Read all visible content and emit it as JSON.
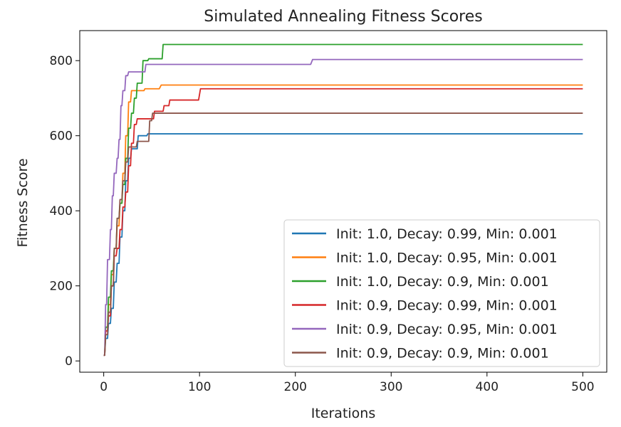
{
  "chart_data": {
    "type": "line",
    "title": "Simulated Annealing Fitness Scores",
    "xlabel": "Iterations",
    "ylabel": "Fitness Score",
    "xlim": [
      -25,
      525
    ],
    "ylim": [
      -30,
      880
    ],
    "xticks": [
      0,
      100,
      200,
      300,
      400,
      500
    ],
    "yticks": [
      0,
      200,
      400,
      600,
      800
    ],
    "legend_position": "lower-right",
    "series": [
      {
        "name": "Init: 1.0, Decay: 0.99, Min: 0.001",
        "color": "#1f77b4",
        "points": [
          [
            0,
            15
          ],
          [
            1,
            15
          ],
          [
            2,
            60
          ],
          [
            4,
            60
          ],
          [
            5,
            100
          ],
          [
            7,
            100
          ],
          [
            8,
            140
          ],
          [
            10,
            140
          ],
          [
            11,
            210
          ],
          [
            13,
            210
          ],
          [
            14,
            260
          ],
          [
            16,
            260
          ],
          [
            17,
            330
          ],
          [
            19,
            330
          ],
          [
            20,
            400
          ],
          [
            22,
            400
          ],
          [
            23,
            480
          ],
          [
            25,
            480
          ],
          [
            26,
            540
          ],
          [
            28,
            540
          ],
          [
            29,
            565
          ],
          [
            35,
            565
          ],
          [
            36,
            600
          ],
          [
            45,
            600
          ],
          [
            46,
            605
          ],
          [
            500,
            605
          ]
        ]
      },
      {
        "name": "Init: 1.0, Decay: 0.95, Min: 0.001",
        "color": "#ff7f0e",
        "points": [
          [
            0,
            15
          ],
          [
            1,
            15
          ],
          [
            2,
            80
          ],
          [
            4,
            80
          ],
          [
            5,
            150
          ],
          [
            7,
            150
          ],
          [
            8,
            230
          ],
          [
            10,
            230
          ],
          [
            11,
            300
          ],
          [
            13,
            300
          ],
          [
            14,
            360
          ],
          [
            16,
            360
          ],
          [
            17,
            420
          ],
          [
            19,
            420
          ],
          [
            20,
            500
          ],
          [
            22,
            500
          ],
          [
            23,
            600
          ],
          [
            25,
            600
          ],
          [
            26,
            690
          ],
          [
            28,
            690
          ],
          [
            29,
            720
          ],
          [
            42,
            720
          ],
          [
            43,
            725
          ],
          [
            58,
            725
          ],
          [
            60,
            735
          ],
          [
            500,
            735
          ]
        ]
      },
      {
        "name": "Init: 1.0, Decay: 0.9, Min: 0.001",
        "color": "#2ca02c",
        "points": [
          [
            0,
            15
          ],
          [
            1,
            15
          ],
          [
            2,
            90
          ],
          [
            4,
            90
          ],
          [
            5,
            170
          ],
          [
            7,
            170
          ],
          [
            8,
            240
          ],
          [
            10,
            240
          ],
          [
            11,
            300
          ],
          [
            13,
            300
          ],
          [
            14,
            380
          ],
          [
            16,
            380
          ],
          [
            17,
            420
          ],
          [
            19,
            420
          ],
          [
            20,
            470
          ],
          [
            22,
            470
          ],
          [
            23,
            540
          ],
          [
            25,
            540
          ],
          [
            26,
            620
          ],
          [
            28,
            620
          ],
          [
            29,
            660
          ],
          [
            31,
            660
          ],
          [
            32,
            700
          ],
          [
            34,
            700
          ],
          [
            35,
            740
          ],
          [
            40,
            740
          ],
          [
            41,
            800
          ],
          [
            46,
            800
          ],
          [
            47,
            805
          ],
          [
            61,
            805
          ],
          [
            62,
            843
          ],
          [
            500,
            843
          ]
        ]
      },
      {
        "name": "Init: 0.9, Decay: 0.99, Min: 0.001",
        "color": "#d62728",
        "points": [
          [
            0,
            15
          ],
          [
            1,
            15
          ],
          [
            2,
            80
          ],
          [
            4,
            80
          ],
          [
            5,
            120
          ],
          [
            7,
            120
          ],
          [
            8,
            200
          ],
          [
            10,
            200
          ],
          [
            11,
            280
          ],
          [
            13,
            280
          ],
          [
            14,
            300
          ],
          [
            16,
            300
          ],
          [
            17,
            350
          ],
          [
            19,
            350
          ],
          [
            20,
            410
          ],
          [
            22,
            410
          ],
          [
            23,
            450
          ],
          [
            25,
            450
          ],
          [
            26,
            520
          ],
          [
            28,
            520
          ],
          [
            29,
            580
          ],
          [
            31,
            580
          ],
          [
            32,
            630
          ],
          [
            34,
            630
          ],
          [
            35,
            645
          ],
          [
            52,
            645
          ],
          [
            53,
            665
          ],
          [
            62,
            665
          ],
          [
            63,
            680
          ],
          [
            68,
            680
          ],
          [
            69,
            695
          ],
          [
            99,
            695
          ],
          [
            101,
            725
          ],
          [
            500,
            725
          ]
        ]
      },
      {
        "name": "Init: 0.9, Decay: 0.95, Min: 0.001",
        "color": "#9467bd",
        "points": [
          [
            0,
            15
          ],
          [
            1,
            15
          ],
          [
            2,
            150
          ],
          [
            3,
            150
          ],
          [
            4,
            270
          ],
          [
            6,
            270
          ],
          [
            7,
            350
          ],
          [
            8,
            350
          ],
          [
            9,
            440
          ],
          [
            10,
            440
          ],
          [
            11,
            500
          ],
          [
            13,
            500
          ],
          [
            14,
            540
          ],
          [
            15,
            540
          ],
          [
            16,
            590
          ],
          [
            17,
            590
          ],
          [
            18,
            680
          ],
          [
            19,
            680
          ],
          [
            20,
            720
          ],
          [
            22,
            720
          ],
          [
            23,
            760
          ],
          [
            25,
            760
          ],
          [
            26,
            770
          ],
          [
            43,
            770
          ],
          [
            44,
            790
          ],
          [
            216,
            790
          ],
          [
            218,
            803
          ],
          [
            500,
            803
          ]
        ]
      },
      {
        "name": "Init: 0.9, Decay: 0.9, Min: 0.001",
        "color": "#8c564b",
        "points": [
          [
            0,
            15
          ],
          [
            1,
            15
          ],
          [
            2,
            70
          ],
          [
            4,
            70
          ],
          [
            5,
            130
          ],
          [
            7,
            130
          ],
          [
            8,
            200
          ],
          [
            10,
            200
          ],
          [
            11,
            300
          ],
          [
            13,
            300
          ],
          [
            14,
            380
          ],
          [
            16,
            380
          ],
          [
            17,
            430
          ],
          [
            19,
            430
          ],
          [
            20,
            480
          ],
          [
            22,
            480
          ],
          [
            23,
            530
          ],
          [
            25,
            530
          ],
          [
            26,
            570
          ],
          [
            34,
            570
          ],
          [
            35,
            585
          ],
          [
            47,
            585
          ],
          [
            48,
            640
          ],
          [
            50,
            640
          ],
          [
            51,
            660
          ],
          [
            500,
            660
          ]
        ]
      }
    ]
  }
}
